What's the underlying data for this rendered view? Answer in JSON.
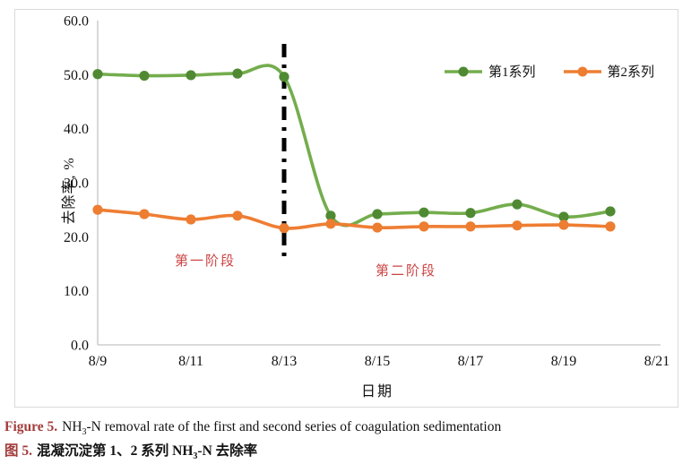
{
  "figure": {
    "caption_en": {
      "label": "Figure 5.",
      "pre": "NH",
      "sub": "3",
      "post": "-N removal rate of the first and second series of coagulation sedimentation"
    },
    "caption_zh": {
      "label": "图 5.",
      "pre": "混凝沉淀第 1、2 系列 NH",
      "sub": "3",
      "post": "-N 去除率"
    }
  },
  "chart_data": {
    "type": "line",
    "title": "",
    "xlabel": "日期",
    "ylabel": "去除率, %",
    "x": [
      "8/9",
      "8/10",
      "8/11",
      "8/12",
      "8/13",
      "8/14",
      "8/15",
      "8/16",
      "8/17",
      "8/18",
      "8/19",
      "8/20"
    ],
    "x_tick_labels": [
      "8/9",
      "8/11",
      "8/13",
      "8/15",
      "8/17",
      "8/19",
      "8/21"
    ],
    "x_tick_positions": [
      0,
      2,
      4,
      6,
      8,
      10,
      12
    ],
    "y_ticks": [
      0,
      10,
      20,
      30,
      40,
      50,
      60
    ],
    "y_tick_labels": [
      "0.0",
      "10.0",
      "20.0",
      "30.0",
      "40.0",
      "50.0",
      "60.0"
    ],
    "ylim": [
      0,
      60
    ],
    "grid": false,
    "smooth": true,
    "legend_position": "top-right",
    "series": [
      {
        "name": "第1系列",
        "color": "#74ad4d",
        "marker_color": "#4f8a33",
        "values": [
          50.1,
          49.8,
          49.9,
          50.2,
          49.6,
          23.9,
          24.2,
          24.5,
          24.4,
          26.0,
          23.7,
          24.7
        ]
      },
      {
        "name": "第2系列",
        "color": "#ee7e33",
        "marker_color": "#ed7d31",
        "values": [
          25.0,
          24.2,
          23.2,
          23.9,
          21.6,
          22.4,
          21.7,
          21.9,
          21.9,
          22.1,
          22.2,
          21.9
        ]
      }
    ],
    "annotations": {
      "divider": {
        "x": "8/13",
        "style": "dash-dot",
        "color": "#000000"
      },
      "stage1": {
        "text": "第一阶段",
        "color": "#cc4444"
      },
      "stage2": {
        "text": "第二阶段",
        "color": "#cc4444"
      }
    },
    "axis_color": "#c4c4c4"
  }
}
